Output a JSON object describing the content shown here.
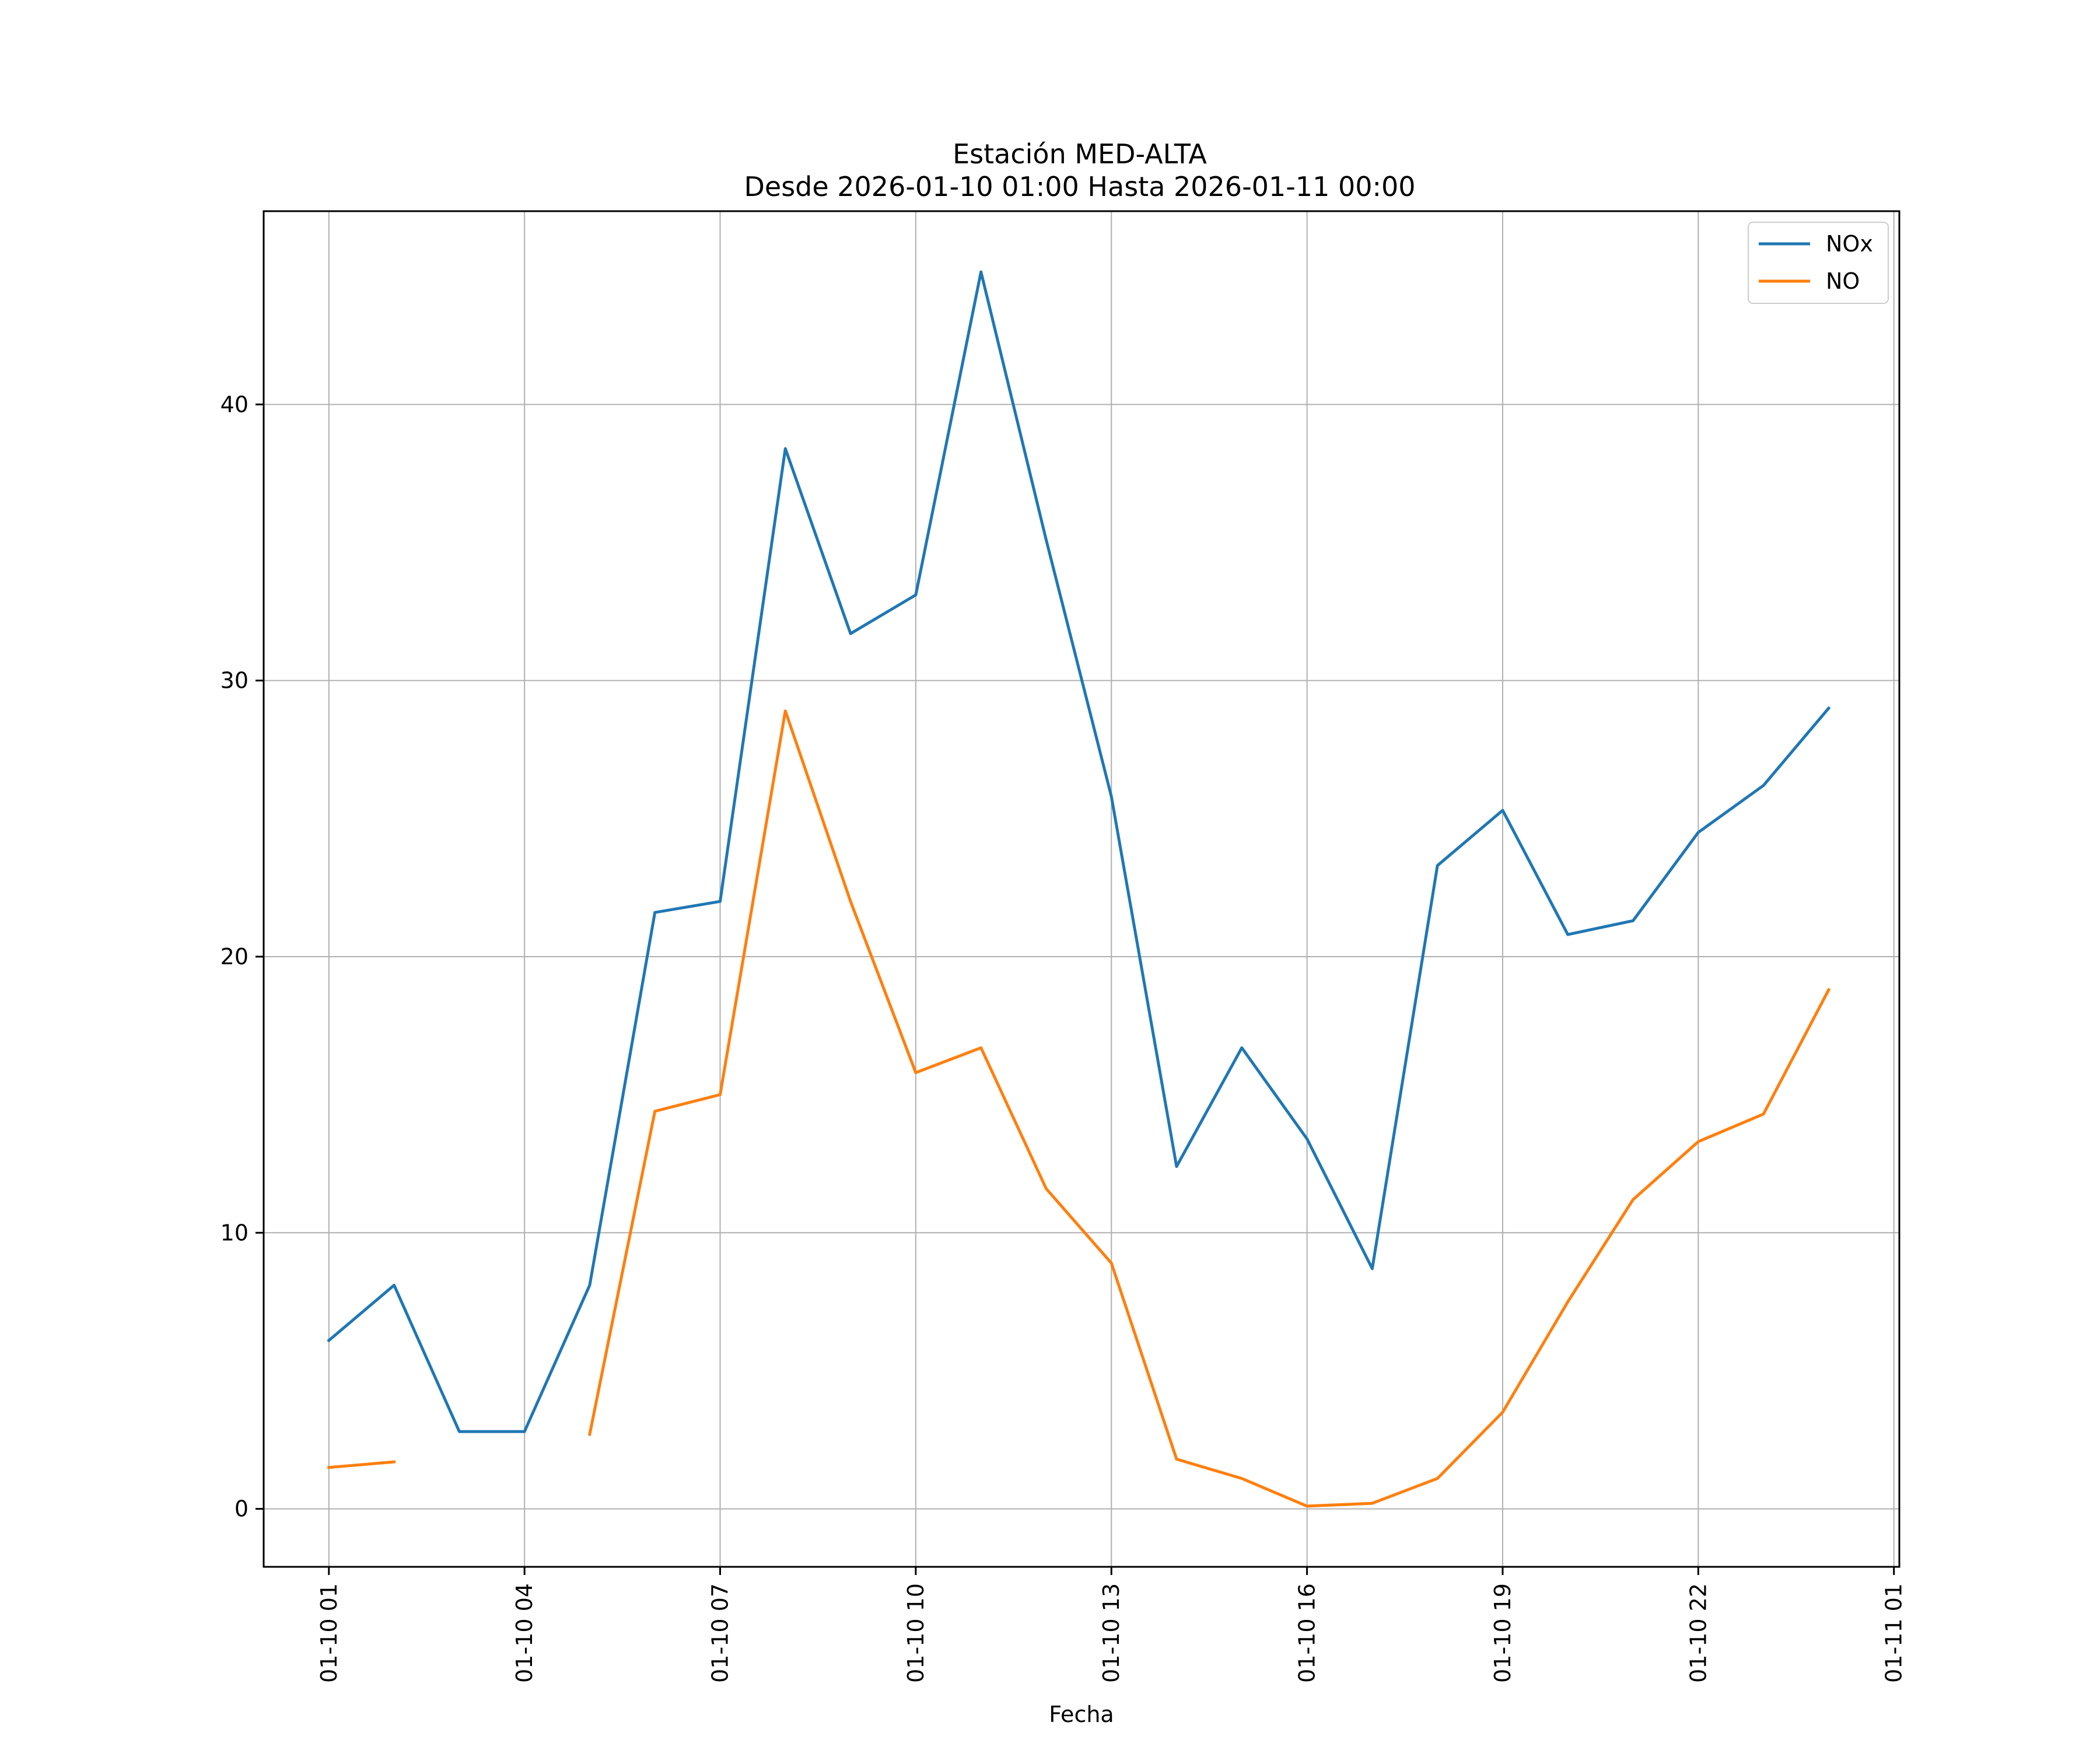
{
  "chart_data": {
    "type": "line",
    "title": "Estación MED-ALTA",
    "subtitle": "Desde 2026-01-10 01:00 Hasta 2026-01-11 00:00",
    "xlabel": "Fecha",
    "ylabel": "",
    "x": [
      "2026-01-10 01:00",
      "2026-01-10 02:00",
      "2026-01-10 03:00",
      "2026-01-10 04:00",
      "2026-01-10 05:00",
      "2026-01-10 06:00",
      "2026-01-10 07:00",
      "2026-01-10 08:00",
      "2026-01-10 09:00",
      "2026-01-10 10:00",
      "2026-01-10 11:00",
      "2026-01-10 12:00",
      "2026-01-10 13:00",
      "2026-01-10 14:00",
      "2026-01-10 15:00",
      "2026-01-10 16:00",
      "2026-01-10 17:00",
      "2026-01-10 18:00",
      "2026-01-10 19:00",
      "2026-01-10 20:00",
      "2026-01-10 21:00",
      "2026-01-10 22:00",
      "2026-01-10 23:00",
      "2026-01-11 00:00"
    ],
    "x_ticks": [
      "2026-01-10 01:00",
      "2026-01-10 04:00",
      "2026-01-10 07:00",
      "2026-01-10 10:00",
      "2026-01-10 13:00",
      "2026-01-10 16:00",
      "2026-01-10 19:00",
      "2026-01-10 22:00",
      "2026-01-11 01:00"
    ],
    "x_tick_labels": [
      "01-10 01",
      "01-10 04",
      "01-10 07",
      "01-10 10",
      "01-10 13",
      "01-10 16",
      "01-10 19",
      "01-10 22",
      "01-11 01"
    ],
    "xlim": [
      "2026-01-10 00:00",
      "2026-01-11 01:05"
    ],
    "y_ticks": [
      0,
      10,
      20,
      30,
      40
    ],
    "ylim": [
      -2.1,
      47.0
    ],
    "grid": true,
    "legend_position": "top-right",
    "series": [
      {
        "name": "NOx",
        "color": "#1f77b4",
        "values": [
          6.1,
          8.1,
          2.8,
          2.8,
          8.1,
          21.6,
          22.0,
          38.4,
          31.7,
          33.1,
          44.8,
          35.1,
          25.8,
          12.4,
          16.7,
          13.4,
          8.7,
          23.3,
          25.3,
          20.8,
          21.3,
          24.5,
          26.2,
          29.0
        ]
      },
      {
        "name": "NO",
        "color": "#ff7f0e",
        "values": [
          1.5,
          1.7,
          null,
          null,
          2.7,
          14.4,
          15.0,
          28.9,
          22.0,
          15.8,
          16.7,
          11.6,
          8.9,
          1.8,
          1.1,
          0.1,
          0.2,
          1.1,
          3.5,
          7.5,
          11.2,
          13.3,
          14.3,
          18.8
        ]
      }
    ]
  }
}
